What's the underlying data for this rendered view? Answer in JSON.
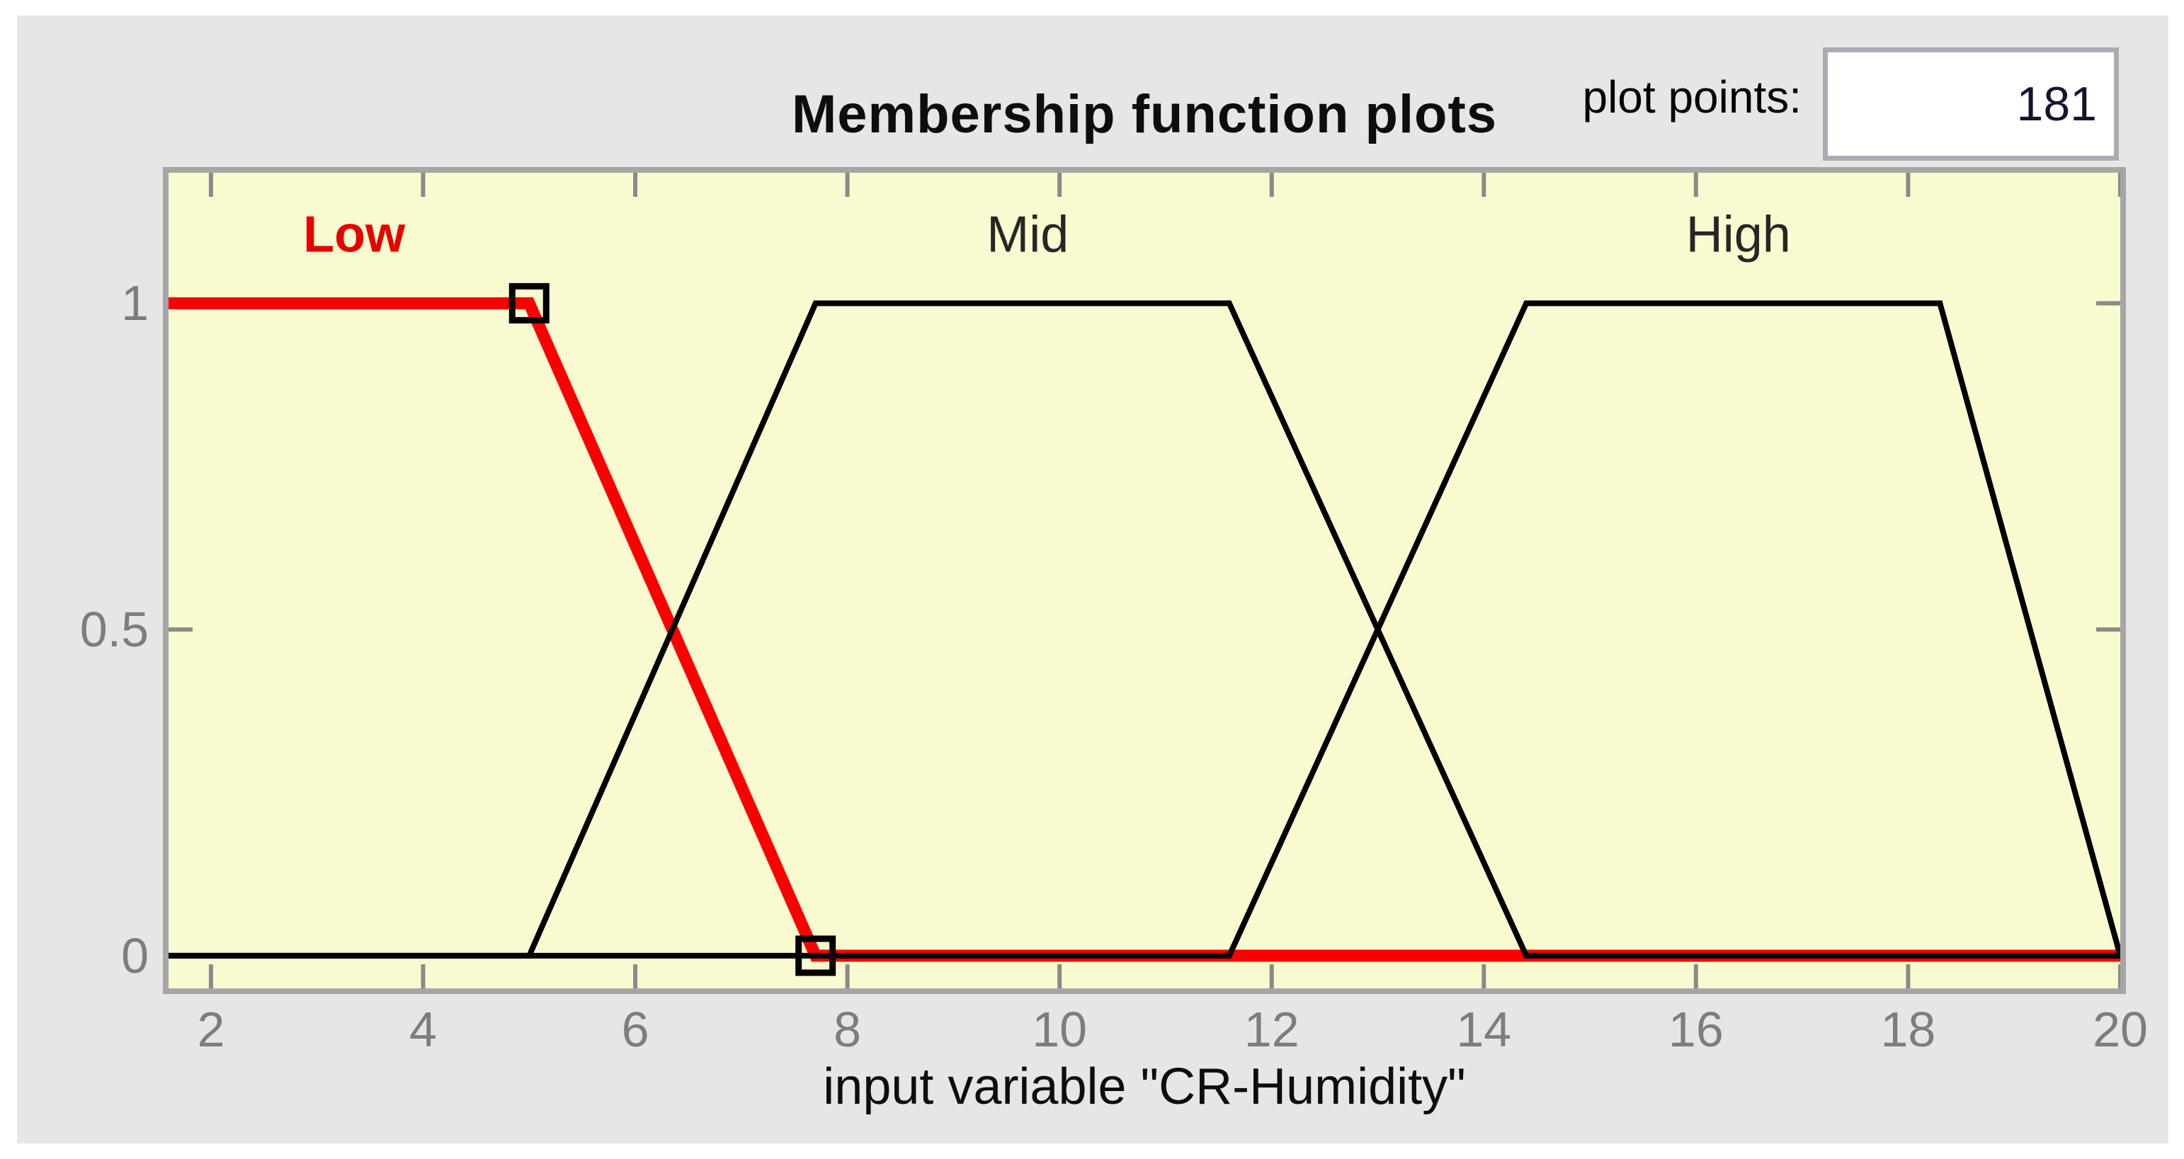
{
  "header": {
    "title": "Membership function plots",
    "plot_points_label": "plot points:",
    "plot_points_value": "181"
  },
  "colors": {
    "panel_background": "#e6e6e6",
    "plot_background": "#fafad0",
    "plot_border": "#a6a6a6",
    "tick_color": "#8a8a8a",
    "tick_label_color": "#7d7d7d",
    "selected_mf_red": "#fa0000",
    "curve_black": "#000000"
  },
  "chart_data": {
    "type": "line",
    "title": "Membership function plots",
    "xlabel": "input variable \"CR-Humidity\"",
    "xlim": [
      1.6,
      20
    ],
    "ylim": [
      -0.05,
      1.2
    ],
    "x_ticks": [
      2,
      4,
      6,
      8,
      10,
      12,
      14,
      16,
      18,
      20
    ],
    "y_ticks": [
      0,
      0.5,
      1
    ],
    "grid": false,
    "plot_background": "#fafad0",
    "series": [
      {
        "name": "Low",
        "color": "#fa0000",
        "selected": true,
        "x": [
          1.6,
          5,
          7.7,
          20
        ],
        "y": [
          1,
          1,
          0,
          0
        ],
        "markers": [
          [
            5,
            1
          ],
          [
            7.7,
            0
          ]
        ]
      },
      {
        "name": "Mid",
        "color": "#000000",
        "selected": false,
        "x": [
          1.6,
          5,
          7.7,
          11.6,
          14.4,
          20
        ],
        "y": [
          0,
          0,
          1,
          1,
          0,
          0
        ]
      },
      {
        "name": "High",
        "color": "#000000",
        "selected": false,
        "x": [
          1.6,
          11.6,
          14.4,
          18.3,
          20
        ],
        "y": [
          0,
          0,
          1,
          1,
          0
        ]
      }
    ],
    "labels": [
      {
        "text": "Low",
        "x": 3.35,
        "y": 1.105,
        "color": "#e60000",
        "bold": true
      },
      {
        "text": "Mid",
        "x": 9.7,
        "y": 1.105,
        "color": "#262626",
        "bold": false
      },
      {
        "text": "High",
        "x": 16.4,
        "y": 1.105,
        "color": "#262626",
        "bold": false
      }
    ]
  }
}
